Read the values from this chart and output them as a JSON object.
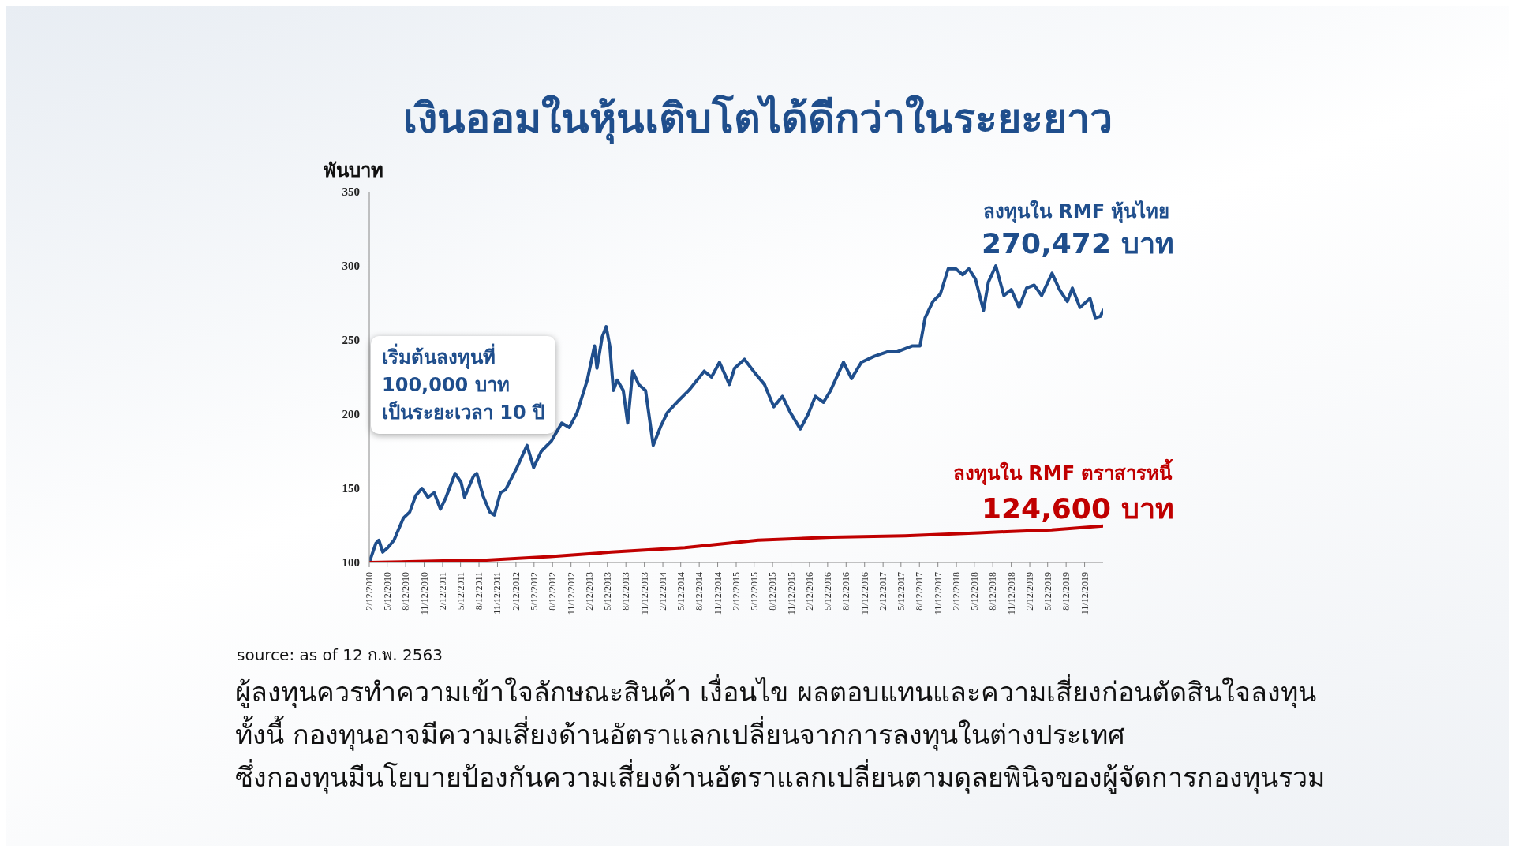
{
  "chart_data": {
    "type": "line",
    "title": "เงินออมในหุ้นเติบโตได้ดีกว่าในระยะยาว",
    "ylabel": "พันบาท",
    "annotations": [
      "เริ่มต้นลงทุนที่\n100,000 บาท\nเป็นระยะเวลา 10 ปี",
      "270,472 บาท",
      "124,600 บาท",
      "source: as of 12 ก.พ. 2563",
      "ผู้ลงทุนควรทำความเข้าใจลักษณะสินค้า เงื่อนไข ผลตอบแทนและความเสี่ยงก่อนตัดสินใจลงทุน",
      "ทั้งนี้ กองทุนอาจมีความเสี่ยงด้านอัตราแลกเปลี่ยนจากการลงทุนในต่างประเทศ",
      "ซึ่งกองทุนมีนโยบายป้องกันความเสี่ยงด้านอัตราแลกเปลี่ยนตามดุลยพินิจของผู้จัดการกองทุนรวม"
    ],
    "series": [
      {
        "name": "ลงทุนใน RMF หุ้นไทย",
        "color": "#1f4e8c",
        "x": [
          "2010-02-12",
          "2010-03-17",
          "2010-04-01",
          "2010-04-20",
          "2010-05-15",
          "2010-06-15",
          "2010-08-01",
          "2010-09-01",
          "2010-10-01",
          "2010-11-01",
          "2010-12-01",
          "2011-01-01",
          "2011-02-01",
          "2011-03-01",
          "2011-04-15",
          "2011-05-15",
          "2011-06-01",
          "2011-07-15",
          "2011-08-01",
          "2011-09-01",
          "2011-10-05",
          "2011-10-27",
          "2011-11-27",
          "2011-12-22",
          "2012-02-17",
          "2012-04-07",
          "2012-05-10",
          "2012-06-17",
          "2012-08-07",
          "2012-09-27",
          "2012-11-04",
          "2012-12-12",
          "2013-02-01",
          "2013-03-09",
          "2013-03-21",
          "2013-04-16",
          "2013-05-06",
          "2013-05-24",
          "2013-06-11",
          "2013-06-30",
          "2013-07-30",
          "2013-08-21",
          "2013-09-15",
          "2013-10-15",
          "2013-11-18",
          "2013-12-26",
          "2014-02-02",
          "2014-03-06",
          "2014-04-30",
          "2014-06-21",
          "2014-09-06",
          "2014-10-12",
          "2014-11-21",
          "2015-01-09",
          "2015-02-04",
          "2015-03-25",
          "2015-05-15",
          "2015-07-03",
          "2015-08-18",
          "2015-09-30",
          "2015-11-09",
          "2015-12-28",
          "2016-02-05",
          "2016-03-12",
          "2016-04-21",
          "2016-05-27",
          "2016-07-30",
          "2016-09-08",
          "2016-10-27",
          "2016-12-30",
          "2017-03-03",
          "2017-04-21",
          "2017-07-06",
          "2017-08-15",
          "2017-09-09",
          "2017-10-18",
          "2017-11-24",
          "2018-01-02",
          "2018-02-09",
          "2018-03-15",
          "2018-04-15",
          "2018-05-18",
          "2018-06-27",
          "2018-07-21",
          "2018-08-27",
          "2018-10-06",
          "2018-11-12",
          "2018-12-21",
          "2019-01-27",
          "2019-03-06",
          "2019-04-12",
          "2019-06-03",
          "2019-07-10",
          "2019-08-18",
          "2019-09-12",
          "2019-10-20",
          "2019-12-09",
          "2020-01-04",
          "2020-01-30",
          "2020-02-12"
        ],
        "values": [
          100,
          113,
          115,
          107,
          110,
          115,
          130,
          134,
          145,
          150,
          144,
          147,
          136,
          144,
          160,
          154,
          144,
          158,
          160,
          145,
          134,
          132,
          147,
          149,
          164,
          179,
          164,
          175,
          182,
          194,
          191,
          201,
          223,
          246,
          231,
          252,
          259,
          246,
          216,
          223,
          216,
          194,
          229,
          220,
          216,
          179,
          192,
          201,
          209,
          216,
          229,
          225,
          235,
          220,
          231,
          237,
          228,
          220,
          205,
          212,
          201,
          190,
          200,
          212,
          208,
          216,
          235,
          224,
          235,
          239,
          242,
          242,
          246,
          246,
          265,
          276,
          281,
          298,
          298,
          294,
          298,
          291,
          270,
          289,
          300,
          280,
          284,
          272,
          285,
          287,
          280,
          295,
          284,
          276,
          285,
          272,
          278,
          265,
          266,
          270
        ]
      },
      {
        "name": "ลงทุนใน RMF ตราสารหนี้",
        "color": "#c00000",
        "x": [
          "2010-02-12",
          "2011-02-12",
          "2011-09-01",
          "2012-08-01",
          "2013-06-01",
          "2014-06-01",
          "2015-06-01",
          "2016-06-01",
          "2017-06-01",
          "2018-06-01",
          "2019-06-01",
          "2020-02-12"
        ],
        "values": [
          100,
          101,
          101.5,
          104,
          107,
          110,
          115,
          117,
          118,
          120,
          122,
          124.6
        ]
      }
    ],
    "xlim": [
      "2010-02-12",
      "2020-02-12"
    ],
    "xticks": [
      {
        "value": "2010-02-12",
        "label": "2/12/2010"
      },
      {
        "value": "2010-05-12",
        "label": "5/12/2010"
      },
      {
        "value": "2010-08-12",
        "label": "8/12/2010"
      },
      {
        "value": "2010-11-12",
        "label": "11/12/2010"
      },
      {
        "value": "2011-02-12",
        "label": "2/12/2011"
      },
      {
        "value": "2011-05-12",
        "label": "5/12/2011"
      },
      {
        "value": "2011-08-12",
        "label": "8/12/2011"
      },
      {
        "value": "2011-11-12",
        "label": "11/12/2011"
      },
      {
        "value": "2012-02-12",
        "label": "2/12/2012"
      },
      {
        "value": "2012-05-12",
        "label": "5/12/2012"
      },
      {
        "value": "2012-08-12",
        "label": "8/12/2012"
      },
      {
        "value": "2012-11-12",
        "label": "11/12/2012"
      },
      {
        "value": "2013-02-12",
        "label": "2/12/2013"
      },
      {
        "value": "2013-05-12",
        "label": "5/12/2013"
      },
      {
        "value": "2013-08-12",
        "label": "8/12/2013"
      },
      {
        "value": "2013-11-12",
        "label": "11/12/2013"
      },
      {
        "value": "2014-02-12",
        "label": "2/12/2014"
      },
      {
        "value": "2014-05-12",
        "label": "5/12/2014"
      },
      {
        "value": "2014-08-12",
        "label": "8/12/2014"
      },
      {
        "value": "2014-11-12",
        "label": "11/12/2014"
      },
      {
        "value": "2015-02-12",
        "label": "2/12/2015"
      },
      {
        "value": "2015-05-12",
        "label": "5/12/2015"
      },
      {
        "value": "2015-08-12",
        "label": "8/12/2015"
      },
      {
        "value": "2015-11-12",
        "label": "11/12/2015"
      },
      {
        "value": "2016-02-12",
        "label": "2/12/2016"
      },
      {
        "value": "2016-05-12",
        "label": "5/12/2016"
      },
      {
        "value": "2016-08-12",
        "label": "8/12/2016"
      },
      {
        "value": "2016-11-12",
        "label": "11/12/2016"
      },
      {
        "value": "2017-02-12",
        "label": "2/12/2017"
      },
      {
        "value": "2017-05-12",
        "label": "5/12/2017"
      },
      {
        "value": "2017-08-12",
        "label": "8/12/2017"
      },
      {
        "value": "2017-11-12",
        "label": "11/12/2017"
      },
      {
        "value": "2018-02-12",
        "label": "2/12/2018"
      },
      {
        "value": "2018-05-12",
        "label": "5/12/2018"
      },
      {
        "value": "2018-08-12",
        "label": "8/12/2018"
      },
      {
        "value": "2018-11-12",
        "label": "11/12/2018"
      },
      {
        "value": "2019-02-12",
        "label": "2/12/2019"
      },
      {
        "value": "2019-05-12",
        "label": "5/12/2019"
      },
      {
        "value": "2019-08-12",
        "label": "8/12/2019"
      },
      {
        "value": "2019-11-12",
        "label": "11/12/2019"
      }
    ],
    "ylim": [
      100,
      350
    ],
    "yticks": [
      100,
      150,
      200,
      250,
      300,
      350
    ],
    "grid": false,
    "legend": false,
    "marker": "none",
    "line_style": "solid"
  }
}
